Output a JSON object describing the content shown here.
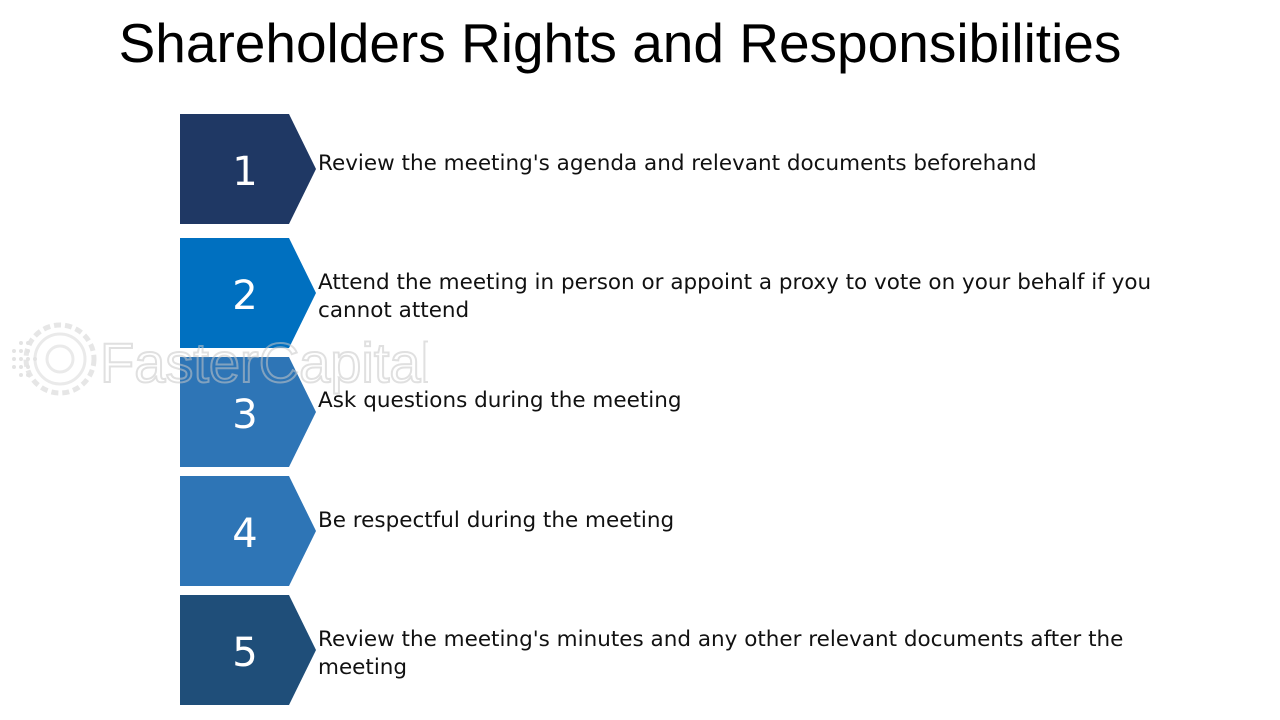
{
  "title": "Shareholders Rights and Responsibilities",
  "watermark": {
    "text": "FasterCapital",
    "icon": "gear-dots-logo-icon"
  },
  "steps": [
    {
      "number": "1",
      "text": "Review the meeting's agenda and relevant documents beforehand",
      "color": "#1f3864"
    },
    {
      "number": "2",
      "text": "Attend the meeting in person or appoint a proxy to vote on your behalf if you cannot attend",
      "color": "#0070c0"
    },
    {
      "number": "3",
      "text": "Ask questions during the meeting",
      "color": "#2e75b6"
    },
    {
      "number": "4",
      "text": "Be respectful during the meeting",
      "color": "#2e75b6"
    },
    {
      "number": "5",
      "text": "Review the meeting's minutes and any other relevant documents after the meeting",
      "color": "#1f4e79"
    }
  ]
}
